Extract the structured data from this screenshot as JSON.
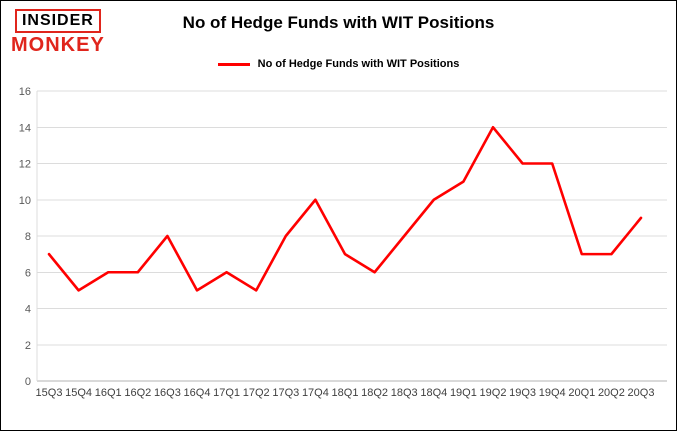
{
  "logo": {
    "line1": "INSIDER",
    "line2": "MONKEY",
    "color": "#e0251c"
  },
  "header": {
    "title": "No of Hedge Funds with WIT Positions"
  },
  "legend": {
    "label": "No of Hedge Funds with WIT Positions",
    "color": "#ff0000"
  },
  "chart_data": {
    "type": "line",
    "title": "No of Hedge Funds with WIT Positions",
    "categories": [
      "15Q3",
      "15Q4",
      "16Q1",
      "16Q2",
      "16Q3",
      "16Q4",
      "17Q1",
      "17Q2",
      "17Q3",
      "17Q4",
      "18Q1",
      "18Q2",
      "18Q3",
      "18Q4",
      "19Q1",
      "19Q2",
      "19Q3",
      "19Q4",
      "20Q1",
      "20Q2",
      "20Q3"
    ],
    "values": [
      7,
      5,
      6,
      6,
      8,
      5,
      6,
      5,
      8,
      10,
      7,
      6,
      8,
      10,
      11,
      14,
      12,
      12,
      7,
      7,
      9
    ],
    "series_name": "No of Hedge Funds with WIT Positions",
    "xlabel": "",
    "ylabel": "",
    "ylim": [
      0,
      16
    ],
    "yticks": [
      0,
      2,
      4,
      6,
      8,
      10,
      12,
      14,
      16
    ],
    "grid": true,
    "legend_position": "top-center",
    "line_color": "#ff0000",
    "grid_color": "#dcdcdc",
    "axis_color": "#b3b3b3",
    "tick_label_color": "#404040"
  }
}
